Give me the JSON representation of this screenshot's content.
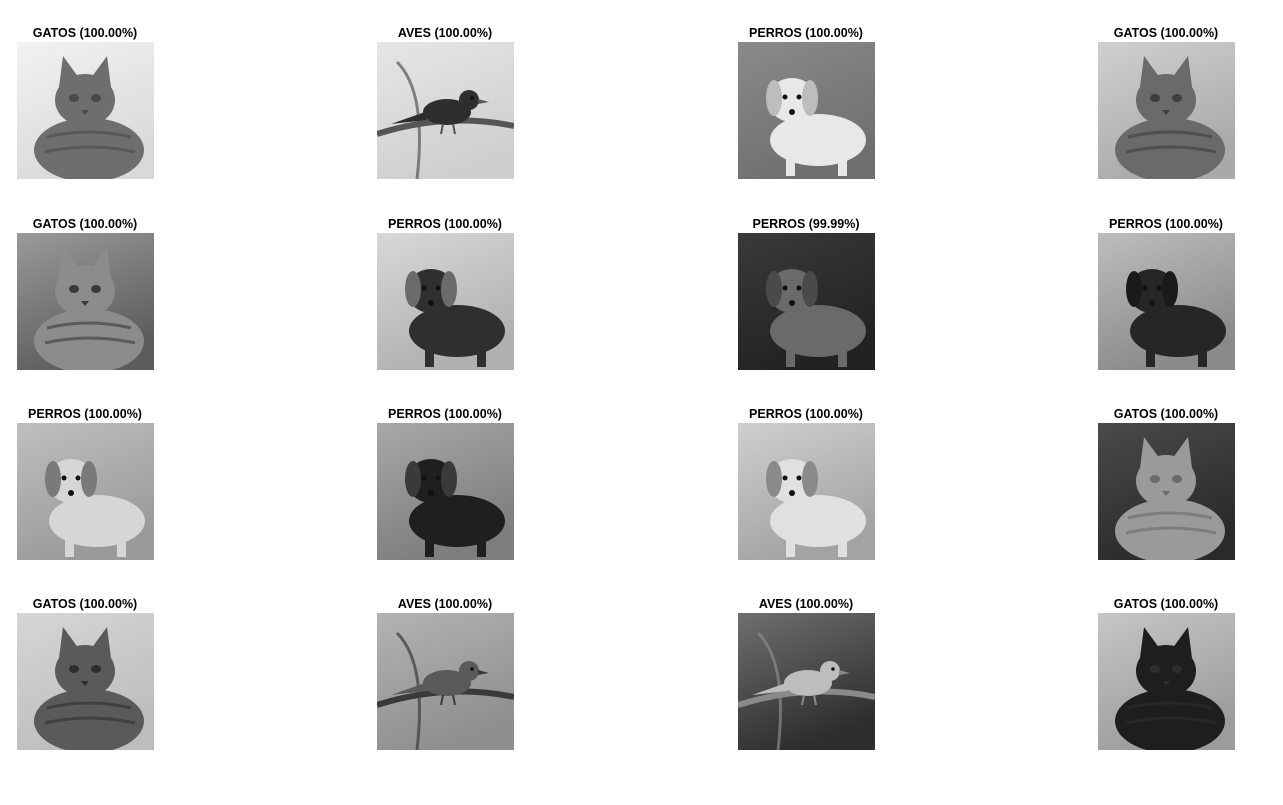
{
  "figure": {
    "panels": [
      {
        "title": "GATOS (100.00%)",
        "subject": "cat",
        "tone": "light"
      },
      {
        "title": "AVES (100.00%)",
        "subject": "bird",
        "tone": "branches"
      },
      {
        "title": "PERROS (100.00%)",
        "subject": "dog",
        "tone": "white-dog"
      },
      {
        "title": "GATOS (100.00%)",
        "subject": "cat",
        "tone": "tabby"
      },
      {
        "title": "GATOS (100.00%)",
        "subject": "cat",
        "tone": "cage"
      },
      {
        "title": "PERROS (100.00%)",
        "subject": "dog",
        "tone": "shepherd"
      },
      {
        "title": "PERROS (99.99%)",
        "subject": "dog",
        "tone": "dark-room"
      },
      {
        "title": "PERROS (100.00%)",
        "subject": "dog",
        "tone": "black-dog"
      },
      {
        "title": "PERROS (100.00%)",
        "subject": "dog",
        "tone": "puppy"
      },
      {
        "title": "PERROS (100.00%)",
        "subject": "dog",
        "tone": "fence"
      },
      {
        "title": "PERROS (100.00%)",
        "subject": "dog",
        "tone": "tile"
      },
      {
        "title": "GATOS (100.00%)",
        "subject": "cat",
        "tone": "dark-tabby"
      },
      {
        "title": "GATOS (100.00%)",
        "subject": "cat",
        "tone": "two-cats"
      },
      {
        "title": "AVES (100.00%)",
        "subject": "bird",
        "tone": "perch"
      },
      {
        "title": "AVES (100.00%)",
        "subject": "bird",
        "tone": "leaves"
      },
      {
        "title": "GATOS (100.00%)",
        "subject": "cat",
        "tone": "black-cat"
      }
    ]
  }
}
